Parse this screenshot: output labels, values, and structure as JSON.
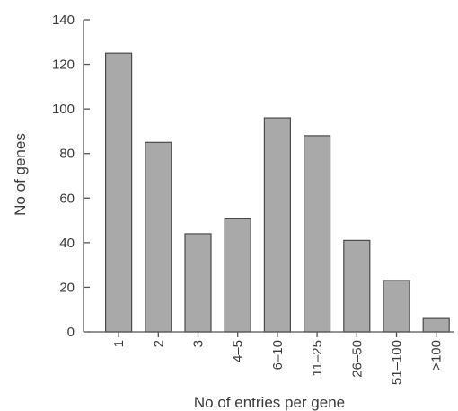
{
  "chart_data": {
    "type": "bar",
    "categories": [
      "1",
      "2",
      "3",
      "4–5",
      "6–10",
      "11–25",
      "26–50",
      "51–100",
      ">100"
    ],
    "values": [
      125,
      85,
      44,
      51,
      96,
      88,
      41,
      23,
      6
    ],
    "xlabel": "No of entries per gene",
    "ylabel": "No of genes",
    "ylim": [
      0,
      140
    ],
    "yticks": [
      0,
      20,
      40,
      60,
      80,
      100,
      120,
      140
    ],
    "grid": false,
    "legend": "none",
    "bar_color": "#a9a9a9",
    "bar_edge_color": "#4a4a4a"
  }
}
